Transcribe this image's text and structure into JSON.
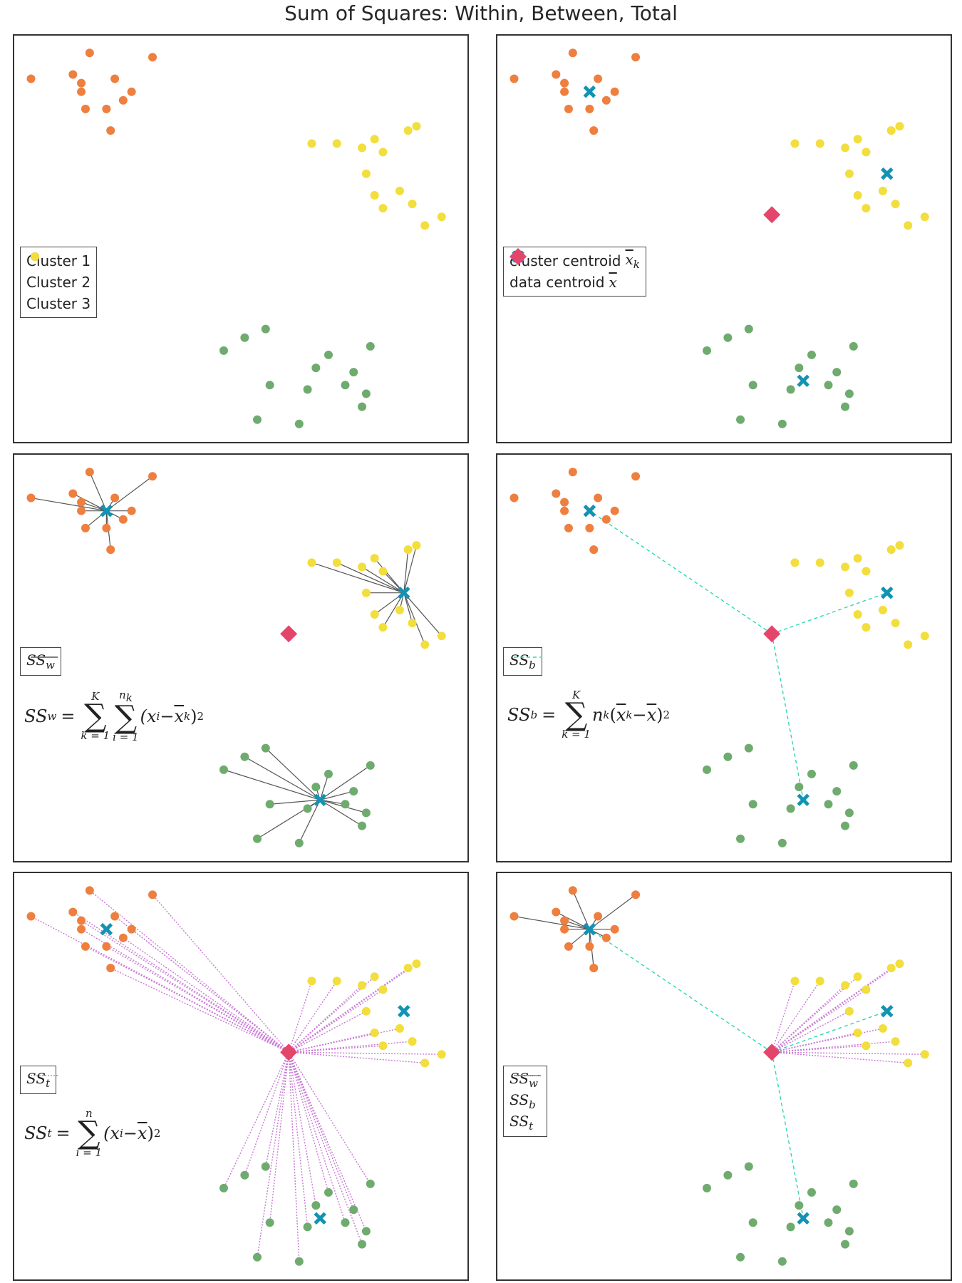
{
  "title": "Sum of Squares: Within, Between, Total",
  "colors": {
    "cluster1": "#6fab6f",
    "cluster2": "#ee7f3f",
    "cluster3": "#f2de3c",
    "cluster_centroid": "#1393b3",
    "data_centroid": "#e4456b",
    "ssw_line": "#555555",
    "ssb_line": "#2fd7b5",
    "sst_line": "#c978d6",
    "frame": "#333333"
  },
  "chart_data": [
    {
      "type": "scatter",
      "panel": "top-left",
      "legend_position": "center-left",
      "series": [
        {
          "name": "Cluster 1",
          "color_key": "cluster1"
        },
        {
          "name": "Cluster 2",
          "color_key": "cluster2"
        },
        {
          "name": "Cluster 3",
          "color_key": "cluster3"
        }
      ],
      "legend": [
        "Cluster 1",
        "Cluster 2",
        "Cluster 3"
      ]
    },
    {
      "type": "scatter",
      "panel": "top-right",
      "legend_position": "center-left",
      "legend": [
        "cluster centroid",
        "data centroid"
      ],
      "legend_math": [
        "x̄",
        "k",
        "x̄"
      ],
      "show_centroids": true
    },
    {
      "type": "scatter",
      "panel": "middle-left",
      "lines": "within",
      "legend_position": "center-left",
      "legend_label": "SS",
      "legend_sub": "w",
      "formula": "SS_w = sum_{k=1}^{K} sum_{i=1}^{n_k} (x_i - x̄_k)^2"
    },
    {
      "type": "scatter",
      "panel": "middle-right",
      "lines": "between",
      "legend_position": "center-left",
      "legend_label": "SS",
      "legend_sub": "b",
      "formula": "SS_b = sum_{k=1}^{K} n_k (x̄_k - x̄)^2"
    },
    {
      "type": "scatter",
      "panel": "bottom-left",
      "lines": "total",
      "legend_position": "center-left",
      "legend_label": "SS",
      "legend_sub": "t",
      "formula": "SS_t = sum_{i=1}^{n} (x_i - x̄)^2"
    },
    {
      "type": "scatter",
      "panel": "bottom-right",
      "lines": "mixed",
      "legend_position": "center-left",
      "legend": [
        "SS_w",
        "SS_b",
        "SS_t"
      ]
    }
  ],
  "points": {
    "cluster1": [
      [
        -1.6,
        -2.7
      ],
      [
        -0.5,
        -3.5
      ],
      [
        -1.1,
        -2.4
      ],
      [
        -0.6,
        -2.2
      ],
      [
        0.6,
        -3.1
      ],
      [
        0.9,
        -2.8
      ],
      [
        1.3,
        -3.5
      ],
      [
        0.4,
        -3.6
      ],
      [
        1.8,
        -3.7
      ],
      [
        1.9,
        -2.6
      ],
      [
        1.5,
        -3.2
      ],
      [
        1.7,
        -4.0
      ],
      [
        0.2,
        -4.4
      ],
      [
        -0.8,
        -4.3
      ]
    ],
    "cluster2": [
      [
        -6.2,
        3.6
      ],
      [
        -5.2,
        3.7
      ],
      [
        -5.0,
        3.5
      ],
      [
        -4.8,
        4.2
      ],
      [
        -5.0,
        3.3
      ],
      [
        -4.2,
        3.6
      ],
      [
        -3.8,
        3.3
      ],
      [
        -4.0,
        3.1
      ],
      [
        -4.4,
        2.9
      ],
      [
        -3.3,
        4.1
      ],
      [
        -4.3,
        2.4
      ],
      [
        -4.9,
        2.9
      ]
    ],
    "cluster3": [
      [
        0.5,
        2.1
      ],
      [
        1.1,
        2.1
      ],
      [
        1.7,
        2.0
      ],
      [
        2.0,
        2.2
      ],
      [
        2.2,
        1.9
      ],
      [
        2.8,
        2.4
      ],
      [
        3.0,
        2.5
      ],
      [
        2.6,
        1.0
      ],
      [
        2.2,
        0.6
      ],
      [
        2.0,
        0.9
      ],
      [
        1.8,
        1.4
      ],
      [
        2.9,
        0.7
      ],
      [
        3.2,
        0.2
      ],
      [
        3.6,
        0.4
      ]
    ],
    "cluster_centroids": [
      [
        0.7,
        -3.4
      ],
      [
        -4.4,
        3.3
      ],
      [
        2.7,
        1.4
      ]
    ],
    "data_centroid": [
      -0.05,
      0.45
    ]
  },
  "legend_text": {
    "cluster1": "Cluster 1",
    "cluster2": "Cluster 2",
    "cluster3": "Cluster 3",
    "cluster_centroid": "cluster centroid",
    "data_centroid": "data centroid",
    "ss": "SS",
    "w": "w",
    "b": "b",
    "t": "t"
  },
  "formulas": {
    "within": {
      "lhs": "SS",
      "sub": "w",
      "op1_top": "K",
      "op1_bot": "k = 1",
      "op2_top": "n",
      "op2_top_sub": "k",
      "op2_bot": "i = 1",
      "body": "(x",
      "body_sub": "i",
      "minus": " − ",
      "xbar": "x",
      "xbar_sub": "k",
      "tail": ")",
      "pow": "2"
    },
    "between": {
      "lhs": "SS",
      "sub": "b",
      "op1_top": "K",
      "op1_bot": "k = 1",
      "n": "n",
      "n_sub": "k",
      "open": "(",
      "xbar": "x",
      "xbar_sub": "k",
      "minus": " − ",
      "xbar2": "x",
      "tail": ")",
      "pow": "2"
    },
    "total": {
      "lhs": "SS",
      "sub": "t",
      "op1_top": "n",
      "op1_bot": "i = 1",
      "body": "(x",
      "body_sub": "i",
      "minus": " − ",
      "xbar": "x",
      "tail": ")",
      "pow": "2"
    }
  }
}
